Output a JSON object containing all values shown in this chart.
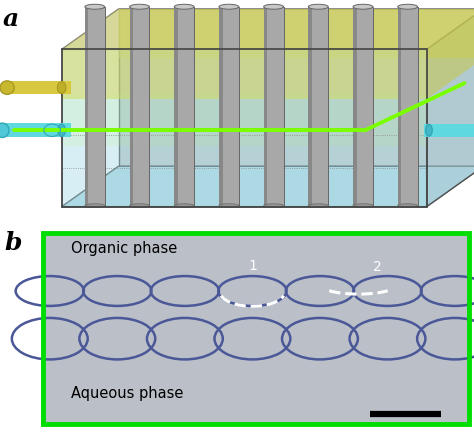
{
  "panel_a_label": "a",
  "panel_b_label": "b",
  "panel_b_text_top": "Organic phase",
  "panel_b_text_bottom": "Aqueous phase",
  "panel_b_border_color": "#00cc00",
  "background_color": "#ffffff",
  "fig_width": 4.74,
  "fig_height": 4.32,
  "dpi": 100,
  "green_line_color": "#7aff00",
  "micrograph_bg": "#bdc2cc"
}
